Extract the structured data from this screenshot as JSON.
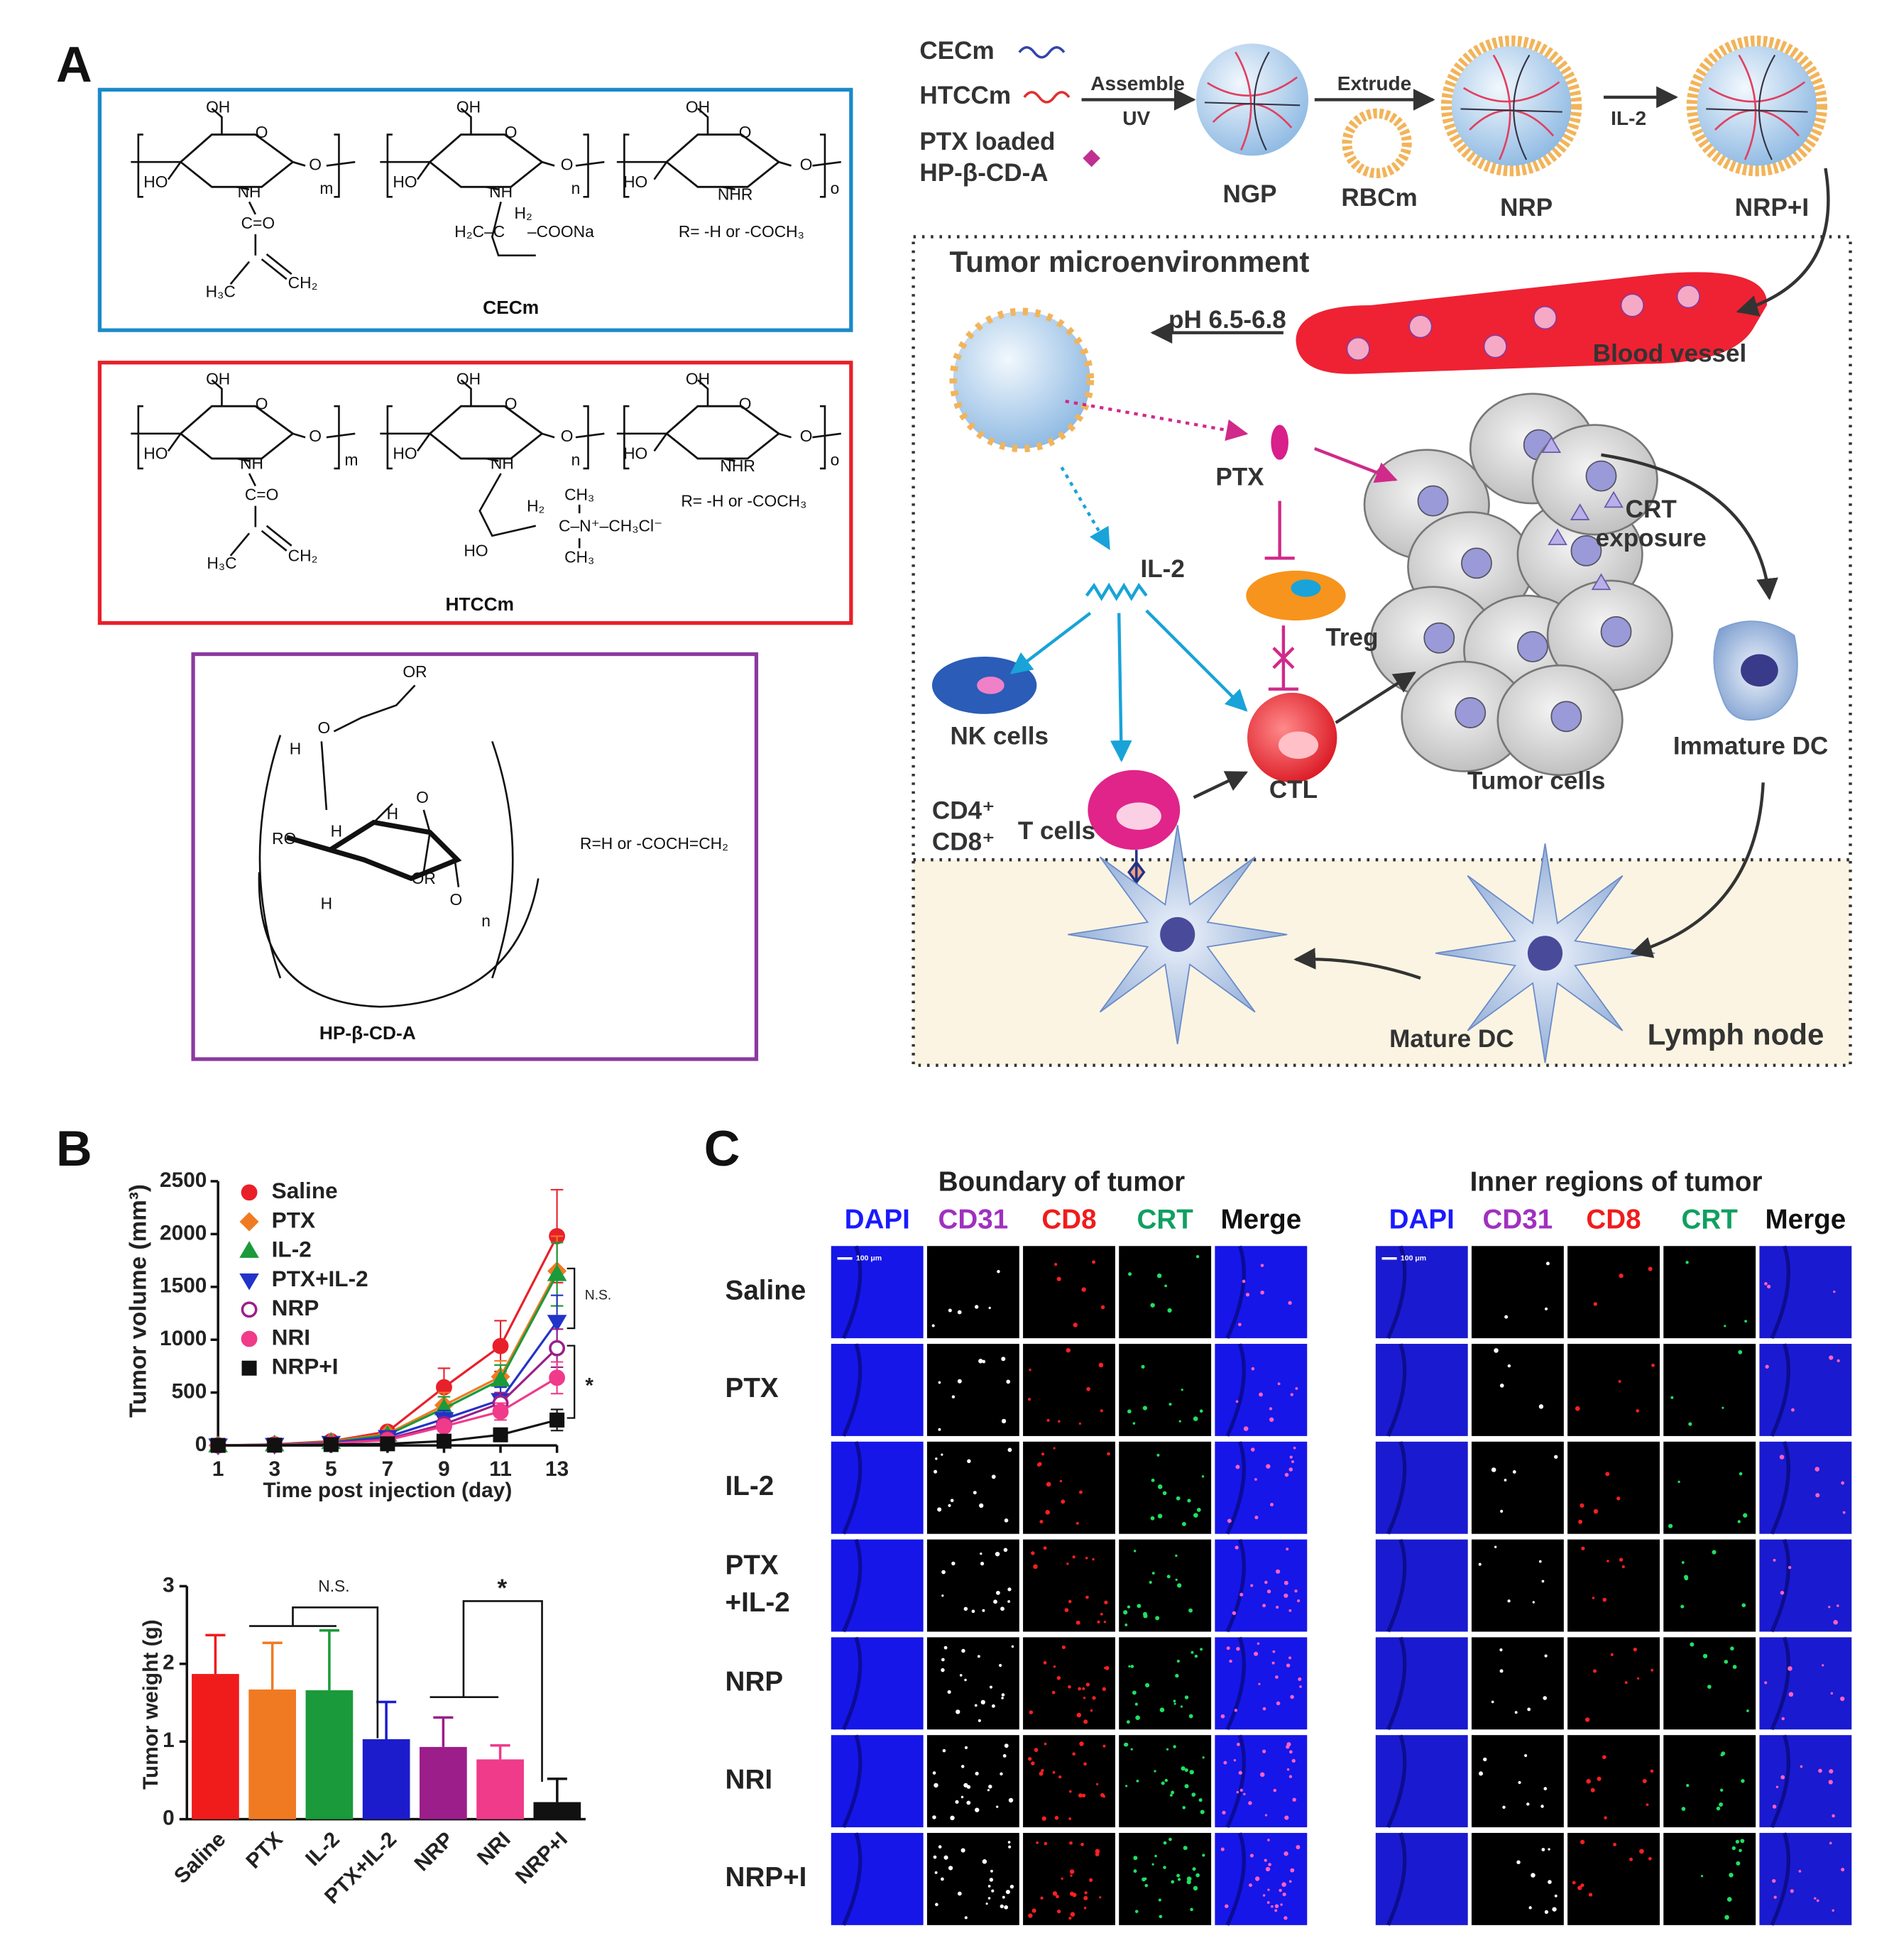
{
  "panel_labels": [
    "A",
    "B",
    "C"
  ],
  "structures": {
    "cecm": [
      "OH",
      "OH",
      "OH",
      "HO",
      "HO",
      "HO",
      "O",
      "O",
      "O",
      "O",
      "O",
      "O",
      "NH",
      "NH",
      "NHR",
      "C=O",
      "H₃C",
      "CH₂",
      "H₂",
      "H₂C–C",
      "–COONa",
      "R= -H or -COCH₃",
      "m",
      "n",
      "o",
      "CECm"
    ],
    "htccm": [
      "OH",
      "OH",
      "OH",
      "HO",
      "HO",
      "HO",
      "O",
      "O",
      "O",
      "O",
      "O",
      "O",
      "NH",
      "NH",
      "NHR",
      "C=O",
      "H₃C",
      "CH₂",
      "H₂",
      "C–N⁺–CH₃Cl⁻",
      "CH₃",
      "CH₃",
      "HO",
      "R= -H or -COCH₃",
      "m",
      "n",
      "o",
      "HTCCm"
    ],
    "hpcd": [
      "OR",
      "O",
      "H",
      "O",
      "H",
      "RO",
      "H",
      "OR",
      "H",
      "O",
      "n",
      "R=H or -COCH=CH₂",
      "HP-β-CD-A"
    ]
  },
  "diagram": [
    "CECm",
    "HTCCm",
    "PTX loaded",
    "HP-β-CD-A",
    "Assemble",
    "UV",
    "NGP",
    "Extrude",
    "RBCm",
    "NRP",
    "IL-2",
    "NRP+I",
    "Tumor microenvironment",
    "pH 6.5-6.8",
    "Blood vessel",
    "PTX",
    "CRT",
    "exposure",
    "IL-2",
    "Treg",
    "NK cells",
    "CTL",
    "Tumor cells",
    "Immature DC",
    "CD4⁺",
    "CD8⁺",
    "T cells",
    "Mature DC",
    "Lymph node"
  ],
  "chart_data": [
    {
      "type": "line",
      "x": [
        1,
        3,
        5,
        7,
        9,
        11,
        13
      ],
      "xlim": [
        1,
        13
      ],
      "xticks": [
        1,
        3,
        5,
        7,
        9,
        11,
        13
      ],
      "ylim": [
        0,
        2500
      ],
      "yticks": [
        0,
        500,
        1000,
        1500,
        2000,
        2500
      ],
      "x_label": "Time post injection (day)",
      "y_label": "Tumor volume (mm³)",
      "legend": "upper left",
      "grid": false,
      "series": [
        {
          "name": "Saline",
          "color": "#e8202a",
          "marker": "circle",
          "values": [
            0,
            10,
            40,
            130,
            550,
            940,
            1980
          ],
          "errors": [
            0,
            5,
            15,
            40,
            180,
            240,
            440
          ]
        },
        {
          "name": "PTX",
          "color": "#f07a22",
          "marker": "diamond",
          "values": [
            0,
            8,
            35,
            110,
            380,
            650,
            1650
          ],
          "errors": [
            0,
            5,
            12,
            30,
            120,
            150,
            330
          ]
        },
        {
          "name": "IL-2",
          "color": "#1a9a3a",
          "marker": "triangle-up",
          "values": [
            0,
            8,
            30,
            100,
            350,
            620,
            1620
          ],
          "errors": [
            0,
            5,
            12,
            30,
            110,
            140,
            300
          ]
        },
        {
          "name": "PTX+IL-2",
          "color": "#2233c8",
          "marker": "triangle-down",
          "values": [
            0,
            6,
            25,
            80,
            250,
            430,
            1170
          ],
          "errors": [
            0,
            4,
            10,
            25,
            80,
            120,
            250
          ]
        },
        {
          "name": "NRP",
          "color": "#9b1e8a",
          "marker": "circle-open",
          "values": [
            0,
            5,
            20,
            60,
            200,
            400,
            920
          ],
          "errors": [
            0,
            3,
            8,
            20,
            60,
            100,
            180
          ]
        },
        {
          "name": "NRI",
          "color": "#f03a8a",
          "marker": "circle",
          "values": [
            0,
            5,
            18,
            50,
            180,
            320,
            640
          ],
          "errors": [
            0,
            3,
            8,
            15,
            50,
            80,
            150
          ]
        },
        {
          "name": "NRP+I",
          "color": "#111111",
          "marker": "square",
          "values": [
            0,
            2,
            8,
            15,
            40,
            100,
            240
          ],
          "errors": [
            0,
            1,
            4,
            8,
            15,
            40,
            100
          ]
        }
      ],
      "annotations": [
        "N.S.",
        "*"
      ]
    },
    {
      "type": "bar",
      "categories": [
        "Saline",
        "PTX",
        "IL-2",
        "PTX+IL-2",
        "NRP",
        "NRI",
        "NRP+I"
      ],
      "values": [
        1.87,
        1.67,
        1.66,
        1.03,
        0.93,
        0.77,
        0.22
      ],
      "errors": [
        0.5,
        0.6,
        0.77,
        0.48,
        0.38,
        0.18,
        0.3
      ],
      "colors": [
        "#f01c1c",
        "#f07a22",
        "#1a9a3a",
        "#1c1ccc",
        "#9b1e8a",
        "#f03a8a",
        "#111111"
      ],
      "ylim": [
        0,
        3
      ],
      "yticks": [
        0,
        1,
        2,
        3
      ],
      "y_label": "Tumor weight (g)",
      "grid": false,
      "annotations": [
        "N.S.",
        "*"
      ]
    }
  ],
  "microscopy": {
    "titles": [
      "Boundary of tumor",
      "Inner regions of tumor"
    ],
    "channels": [
      "DAPI",
      "CD31",
      "CD8",
      "CRT",
      "Merge"
    ],
    "channel_colors": [
      "#1a1aff",
      "#a030c0",
      "#f01c1c",
      "#10a060",
      "#111111"
    ],
    "rows": [
      [
        "Saline"
      ],
      [
        "PTX"
      ],
      [
        "IL-2"
      ],
      [
        "PTX",
        "+IL-2"
      ],
      [
        "NRP"
      ],
      [
        "NRI"
      ],
      [
        "NRP+I"
      ]
    ],
    "scale_bar": "100 μm"
  }
}
